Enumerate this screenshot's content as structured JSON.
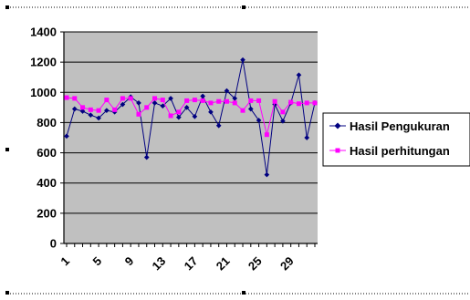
{
  "chart_data": {
    "type": "line",
    "title": "",
    "xlabel": "",
    "ylabel": "",
    "ylim": [
      0,
      1400
    ],
    "yticks": [
      0,
      200,
      400,
      600,
      800,
      1000,
      1200,
      1400
    ],
    "x": [
      1,
      2,
      3,
      4,
      5,
      6,
      7,
      8,
      9,
      10,
      11,
      12,
      13,
      14,
      15,
      16,
      17,
      18,
      19,
      20,
      21,
      22,
      23,
      24,
      25,
      26,
      27,
      28,
      29,
      30,
      31,
      32
    ],
    "xtick_labels": [
      "1",
      "5",
      "9",
      "13",
      "17",
      "21",
      "25",
      "29"
    ],
    "grid": true,
    "plot_background": "#c0c0c0",
    "legend_position": "right",
    "series": [
      {
        "name": "Hasil Pengukuran",
        "color": "#000080",
        "marker": "diamond",
        "values": [
          710,
          890,
          875,
          850,
          830,
          880,
          870,
          920,
          970,
          930,
          570,
          930,
          910,
          960,
          835,
          900,
          840,
          975,
          870,
          780,
          1010,
          960,
          1215,
          890,
          815,
          455,
          920,
          810,
          930,
          1115,
          700,
          930
        ]
      },
      {
        "name": "Hasil perhitungan",
        "color": "#ff00ff",
        "marker": "square",
        "values": [
          965,
          960,
          900,
          885,
          880,
          950,
          885,
          960,
          960,
          855,
          900,
          960,
          950,
          845,
          870,
          945,
          950,
          945,
          930,
          940,
          940,
          930,
          880,
          945,
          945,
          720,
          940,
          870,
          935,
          925,
          930,
          930
        ]
      }
    ]
  }
}
